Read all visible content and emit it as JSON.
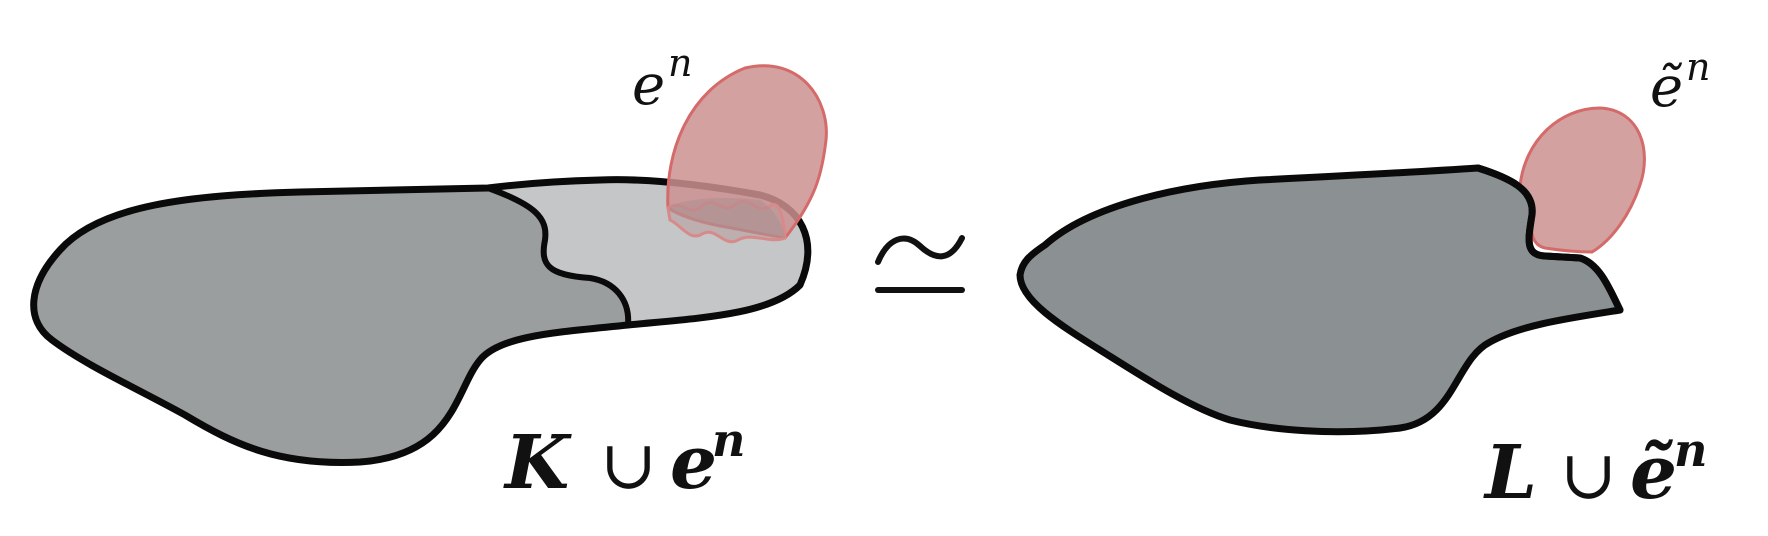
{
  "left": {
    "label_base": "K",
    "label_cup": "∪",
    "label_cell": "e",
    "label_cell_sup": "n",
    "cell_label": "e",
    "cell_label_sup": "n"
  },
  "right": {
    "label_base": "L",
    "label_cup": "∪",
    "label_cell": "ẽ",
    "label_cell_sup": "n",
    "cell_label": "ẽ",
    "cell_label_sup": "n"
  },
  "equivalence_symbol": "≃",
  "colors": {
    "dark_region": "#9a9e9e",
    "light_region": "#c4c6c8",
    "right_region": "#8b9193",
    "cell_fill": "#cc9090",
    "cell_stroke": "#d46a6a",
    "outline": "#0a0a0a"
  }
}
